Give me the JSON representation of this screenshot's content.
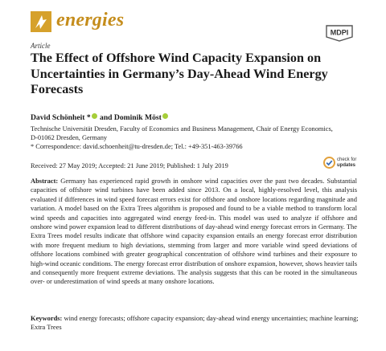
{
  "header": {
    "journal_name": "energies",
    "journal_logo_icon": "pen-nib-icon",
    "publisher": "MDPI",
    "brand_color": "#c58d1c"
  },
  "article": {
    "type": "Article",
    "title": "The Effect of Offshore Wind Capacity Expansion on Uncertainties in Germany’s Day-Ahead Wind Energy Forecasts",
    "authors": {
      "author_1": "David Schönheit *",
      "author_sep": " and ",
      "author_2": "Dominik Möst"
    },
    "affiliation": [
      "Technische Universität Dresden, Faculty of Economics and Business Management, Chair of Energy Economics,",
      "D-01062 Dresden, Germany",
      "*  Correspondence: david.schoenheit@tu-dresden.de; Tel.: +49-351-463-39766"
    ],
    "dates": "Received: 27 May 2019; Accepted: 21 June 2019; Published: 1 July 2019",
    "check_updates": {
      "line1": "check for",
      "line2": "updates"
    },
    "abstract_label": "Abstract:",
    "abstract_text": "Germany has experienced rapid growth in onshore wind capacities over the past two decades. Substantial capacities of offshore wind turbines have been added since 2013. On a local, highly-resolved level, this analysis evaluated if differences in wind speed forecast errors exist for offshore and onshore locations regarding magnitude and variation. A model based on the Extra Trees algorithm is proposed and found to be a viable method to transform local wind speeds and capacities into aggregated wind energy feed-in. This model was used to analyze if offshore and onshore wind power expansion lead to different distributions of day-ahead wind energy forecast errors in Germany. The Extra Trees model results indicate that offshore wind capacity expansion entails an energy forecast error distribution with more frequent medium to high deviations, stemming from larger and more variable wind speed deviations of offshore locations combined with greater geographical concentration of offshore wind turbines and their exposure to high-wind oceanic conditions. The energy forecast error distribution of onshore expansion, however, shows heavier tails and consequently more frequent extreme deviations. The analysis suggests that this can be rooted in the simultaneous over- or underestimation of wind speeds at many onshore locations.",
    "keywords_label": "Keywords:",
    "keywords_text": "wind energy forecasts; offshore capacity expansion; day-ahead wind energy uncertainties; machine learning; Extra Trees"
  }
}
